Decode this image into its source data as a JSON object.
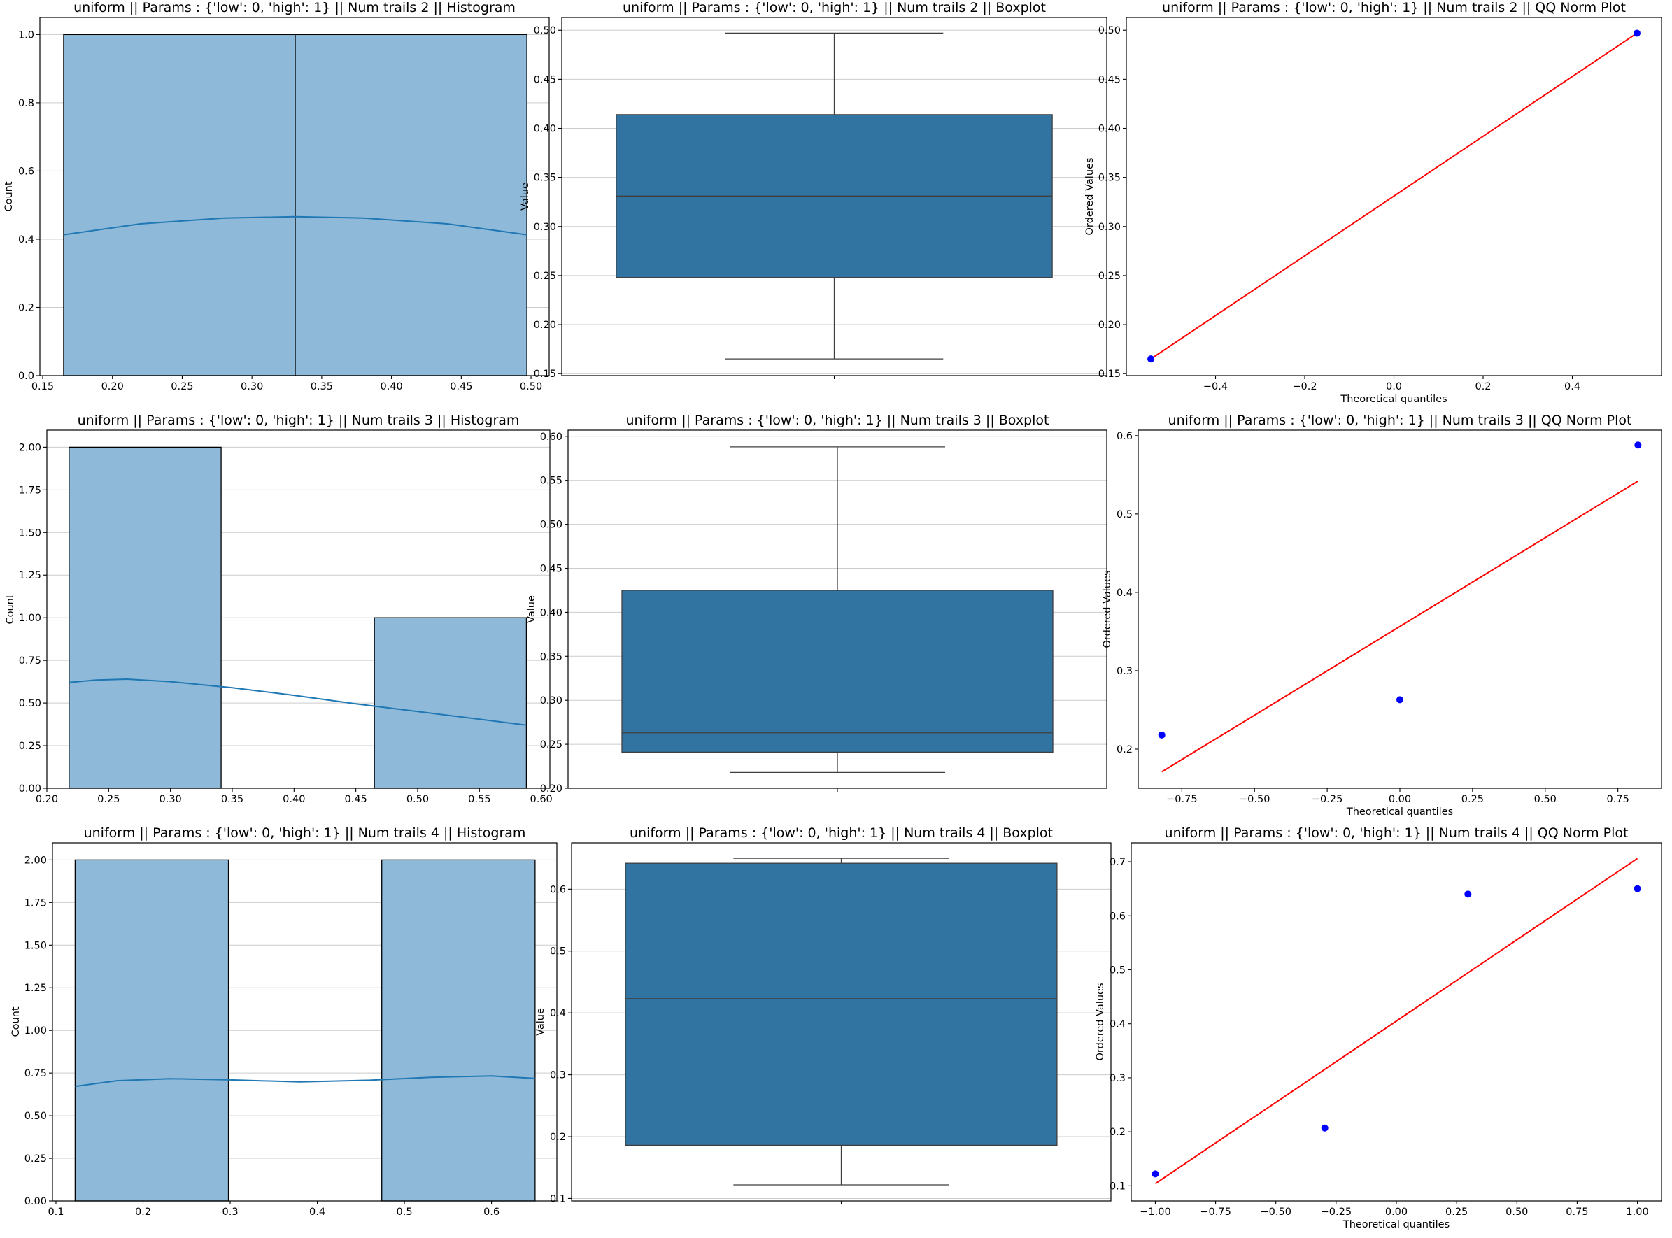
{
  "figure": {
    "background": "#ffffff",
    "colors": {
      "hist_fill": "#8fb9d9",
      "hist_edge": "#000000",
      "kde_line": "#1f77b4",
      "box_fill": "#3274a1",
      "box_lines": "#3f3f3f",
      "grid": "#cccccc",
      "qq_points": "#0000ff",
      "qq_line": "#ff0000"
    }
  },
  "chart_data": [
    {
      "type": "bar",
      "kind": "histogram",
      "title": "uniform || Params : {'low': 0, 'high': 1} || Num trails 2 || Histogram",
      "xlabel": "",
      "ylabel": "Count",
      "xlim": [
        0.148,
        0.513
      ],
      "ylim": [
        0,
        1.05
      ],
      "xticks": [
        0.15,
        0.2,
        0.25,
        0.3,
        0.35,
        0.4,
        0.45,
        0.5
      ],
      "xtick_labels": [
        "0.15",
        "0.20",
        "0.25",
        "0.30",
        "0.35",
        "0.40",
        "0.45",
        "0.50"
      ],
      "yticks": [
        0,
        0.2,
        0.4,
        0.6,
        0.8,
        1.0
      ],
      "ytick_labels": [
        "0.0",
        "0.2",
        "0.4",
        "0.6",
        "0.8",
        "1.0"
      ],
      "grid": "y",
      "bins": [
        [
          0.165,
          0.331,
          1
        ],
        [
          0.331,
          0.497,
          1
        ]
      ],
      "kde": [
        [
          0.165,
          0.413
        ],
        [
          0.22,
          0.445
        ],
        [
          0.28,
          0.462
        ],
        [
          0.331,
          0.466
        ],
        [
          0.38,
          0.462
        ],
        [
          0.44,
          0.445
        ],
        [
          0.497,
          0.413
        ]
      ]
    },
    {
      "type": "box",
      "title": "uniform || Params : {'low': 0, 'high': 1} || Num trails 2 || Boxplot",
      "xlabel": "",
      "ylabel": "Value",
      "ylim": [
        0.148,
        0.513
      ],
      "yticks": [
        0.15,
        0.2,
        0.25,
        0.3,
        0.35,
        0.4,
        0.45,
        0.5
      ],
      "ytick_labels": [
        "0.15",
        "0.20",
        "0.25",
        "0.30",
        "0.35",
        "0.40",
        "0.45",
        "0.50"
      ],
      "grid": "y",
      "stats": {
        "min": 0.165,
        "q1": 0.248,
        "median": 0.331,
        "q3": 0.414,
        "max": 0.497
      }
    },
    {
      "type": "scatter",
      "kind": "qq",
      "title": "uniform || Params : {'low': 0, 'high': 1} || Num trails 2 || QQ Norm Plot",
      "xlabel": "Theoretical quantiles",
      "ylabel": "Ordered Values",
      "xlim": [
        -0.6,
        0.6
      ],
      "ylim": [
        0.148,
        0.513
      ],
      "xticks": [
        -0.4,
        -0.2,
        0.0,
        0.2,
        0.4
      ],
      "xtick_labels": [
        "−0.4",
        "−0.2",
        "0.0",
        "0.2",
        "0.4"
      ],
      "yticks": [
        0.15,
        0.2,
        0.25,
        0.3,
        0.35,
        0.4,
        0.45,
        0.5
      ],
      "ytick_labels": [
        "0.15",
        "0.20",
        "0.25",
        "0.30",
        "0.35",
        "0.40",
        "0.45",
        "0.50"
      ],
      "grid": "none",
      "points": [
        [
          -0.545,
          0.165
        ],
        [
          0.545,
          0.497
        ]
      ],
      "fit_line": [
        [
          -0.545,
          0.165
        ],
        [
          0.545,
          0.497
        ]
      ]
    },
    {
      "type": "bar",
      "kind": "histogram",
      "title": "uniform || Params : {'low': 0, 'high': 1} || Num trails 3 || Histogram",
      "xlabel": "",
      "ylabel": "Count",
      "xlim": [
        0.2,
        0.607
      ],
      "ylim": [
        0,
        2.1
      ],
      "xticks": [
        0.2,
        0.25,
        0.3,
        0.35,
        0.4,
        0.45,
        0.5,
        0.55,
        0.6
      ],
      "xtick_labels": [
        "0.20",
        "0.25",
        "0.30",
        "0.35",
        "0.40",
        "0.45",
        "0.50",
        "0.55",
        "0.60"
      ],
      "yticks": [
        0,
        0.25,
        0.5,
        0.75,
        1.0,
        1.25,
        1.5,
        1.75,
        2.0
      ],
      "ytick_labels": [
        "0.00",
        "0.25",
        "0.50",
        "0.75",
        "1.00",
        "1.25",
        "1.50",
        "1.75",
        "2.00"
      ],
      "grid": "y",
      "bins": [
        [
          0.218,
          0.341,
          2
        ],
        [
          0.341,
          0.465,
          0
        ],
        [
          0.465,
          0.588,
          1
        ]
      ],
      "kde": [
        [
          0.218,
          0.62
        ],
        [
          0.24,
          0.635
        ],
        [
          0.265,
          0.64
        ],
        [
          0.3,
          0.625
        ],
        [
          0.35,
          0.59
        ],
        [
          0.4,
          0.545
        ],
        [
          0.45,
          0.495
        ],
        [
          0.5,
          0.45
        ],
        [
          0.55,
          0.405
        ],
        [
          0.588,
          0.37
        ]
      ]
    },
    {
      "type": "box",
      "title": "uniform || Params : {'low': 0, 'high': 1} || Num trails 3 || Boxplot",
      "xlabel": "",
      "ylabel": "Value",
      "ylim": [
        0.2,
        0.607
      ],
      "yticks": [
        0.2,
        0.25,
        0.3,
        0.35,
        0.4,
        0.45,
        0.5,
        0.55,
        0.6
      ],
      "ytick_labels": [
        "0.20",
        "0.25",
        "0.30",
        "0.35",
        "0.40",
        "0.45",
        "0.50",
        "0.55",
        "0.60"
      ],
      "grid": "y",
      "stats": {
        "min": 0.218,
        "q1": 0.241,
        "median": 0.263,
        "q3": 0.425,
        "max": 0.588
      }
    },
    {
      "type": "scatter",
      "kind": "qq",
      "title": "uniform || Params : {'low': 0, 'high': 1} || Num trails 3 || QQ Norm Plot",
      "xlabel": "Theoretical quantiles",
      "ylabel": "Ordered Values",
      "xlim": [
        -0.9,
        0.9
      ],
      "ylim": [
        0.15,
        0.607
      ],
      "xticks": [
        -0.75,
        -0.5,
        -0.25,
        0.0,
        0.25,
        0.5,
        0.75
      ],
      "xtick_labels": [
        "−0.75",
        "−0.50",
        "−0.25",
        "0.00",
        "0.25",
        "0.50",
        "0.75"
      ],
      "yticks": [
        0.2,
        0.3,
        0.4,
        0.5,
        0.6
      ],
      "ytick_labels": [
        "0.2",
        "0.3",
        "0.4",
        "0.5",
        "0.6"
      ],
      "grid": "none",
      "points": [
        [
          -0.819,
          0.218
        ],
        [
          0.0,
          0.263
        ],
        [
          0.819,
          0.588
        ]
      ],
      "fit_line": [
        [
          -0.819,
          0.171
        ],
        [
          0.819,
          0.542
        ]
      ]
    },
    {
      "type": "bar",
      "kind": "histogram",
      "title": "uniform || Params : {'low': 0, 'high': 1} || Num trails 4 || Histogram",
      "xlabel": "",
      "ylabel": "Count",
      "xlim": [
        0.096,
        0.675
      ],
      "ylim": [
        0,
        2.1
      ],
      "xticks": [
        0.1,
        0.2,
        0.3,
        0.4,
        0.5,
        0.6
      ],
      "xtick_labels": [
        "0.1",
        "0.2",
        "0.3",
        "0.4",
        "0.5",
        "0.6"
      ],
      "yticks": [
        0,
        0.25,
        0.5,
        0.75,
        1.0,
        1.25,
        1.5,
        1.75,
        2.0
      ],
      "ytick_labels": [
        "0.00",
        "0.25",
        "0.50",
        "0.75",
        "1.00",
        "1.25",
        "1.50",
        "1.75",
        "2.00"
      ],
      "grid": "y",
      "bins": [
        [
          0.122,
          0.298,
          2
        ],
        [
          0.298,
          0.474,
          0
        ],
        [
          0.474,
          0.65,
          2
        ]
      ],
      "kde": [
        [
          0.122,
          0.672
        ],
        [
          0.17,
          0.705
        ],
        [
          0.23,
          0.717
        ],
        [
          0.3,
          0.71
        ],
        [
          0.38,
          0.698
        ],
        [
          0.46,
          0.708
        ],
        [
          0.53,
          0.725
        ],
        [
          0.6,
          0.733
        ],
        [
          0.65,
          0.718
        ]
      ]
    },
    {
      "type": "box",
      "title": "uniform || Params : {'low': 0, 'high': 1} || Num trails 4 || Boxplot",
      "xlabel": "",
      "ylabel": "Value",
      "ylim": [
        0.096,
        0.675
      ],
      "yticks": [
        0.1,
        0.2,
        0.3,
        0.4,
        0.5,
        0.6
      ],
      "ytick_labels": [
        "0.1",
        "0.2",
        "0.3",
        "0.4",
        "0.5",
        "0.6"
      ],
      "grid": "y",
      "stats": {
        "min": 0.122,
        "q1": 0.186,
        "median": 0.423,
        "q3": 0.642,
        "max": 0.65
      }
    },
    {
      "type": "scatter",
      "kind": "qq",
      "title": "uniform || Params : {'low': 0, 'high': 1} || Num trails 4 || QQ Norm Plot",
      "xlabel": "Theoretical quantiles",
      "ylabel": "Ordered Values",
      "xlim": [
        -1.1,
        1.1
      ],
      "ylim": [
        0.072,
        0.735
      ],
      "xticks": [
        -1.0,
        -0.75,
        -0.5,
        -0.25,
        0.0,
        0.25,
        0.5,
        0.75,
        1.0
      ],
      "xtick_labels": [
        "−1.00",
        "−0.75",
        "−0.50",
        "−0.25",
        "0.00",
        "0.25",
        "0.50",
        "0.75",
        "1.00"
      ],
      "yticks": [
        0.1,
        0.2,
        0.3,
        0.4,
        0.5,
        0.6,
        0.7
      ],
      "ytick_labels": [
        "0.1",
        "0.2",
        "0.3",
        "0.4",
        "0.5",
        "0.6",
        "0.7"
      ],
      "grid": "none",
      "points": [
        [
          -1.0,
          0.122
        ],
        [
          -0.297,
          0.207
        ],
        [
          0.297,
          0.64
        ],
        [
          1.0,
          0.65
        ]
      ],
      "fit_line": [
        [
          -1.0,
          0.104
        ],
        [
          1.0,
          0.706
        ]
      ]
    }
  ]
}
